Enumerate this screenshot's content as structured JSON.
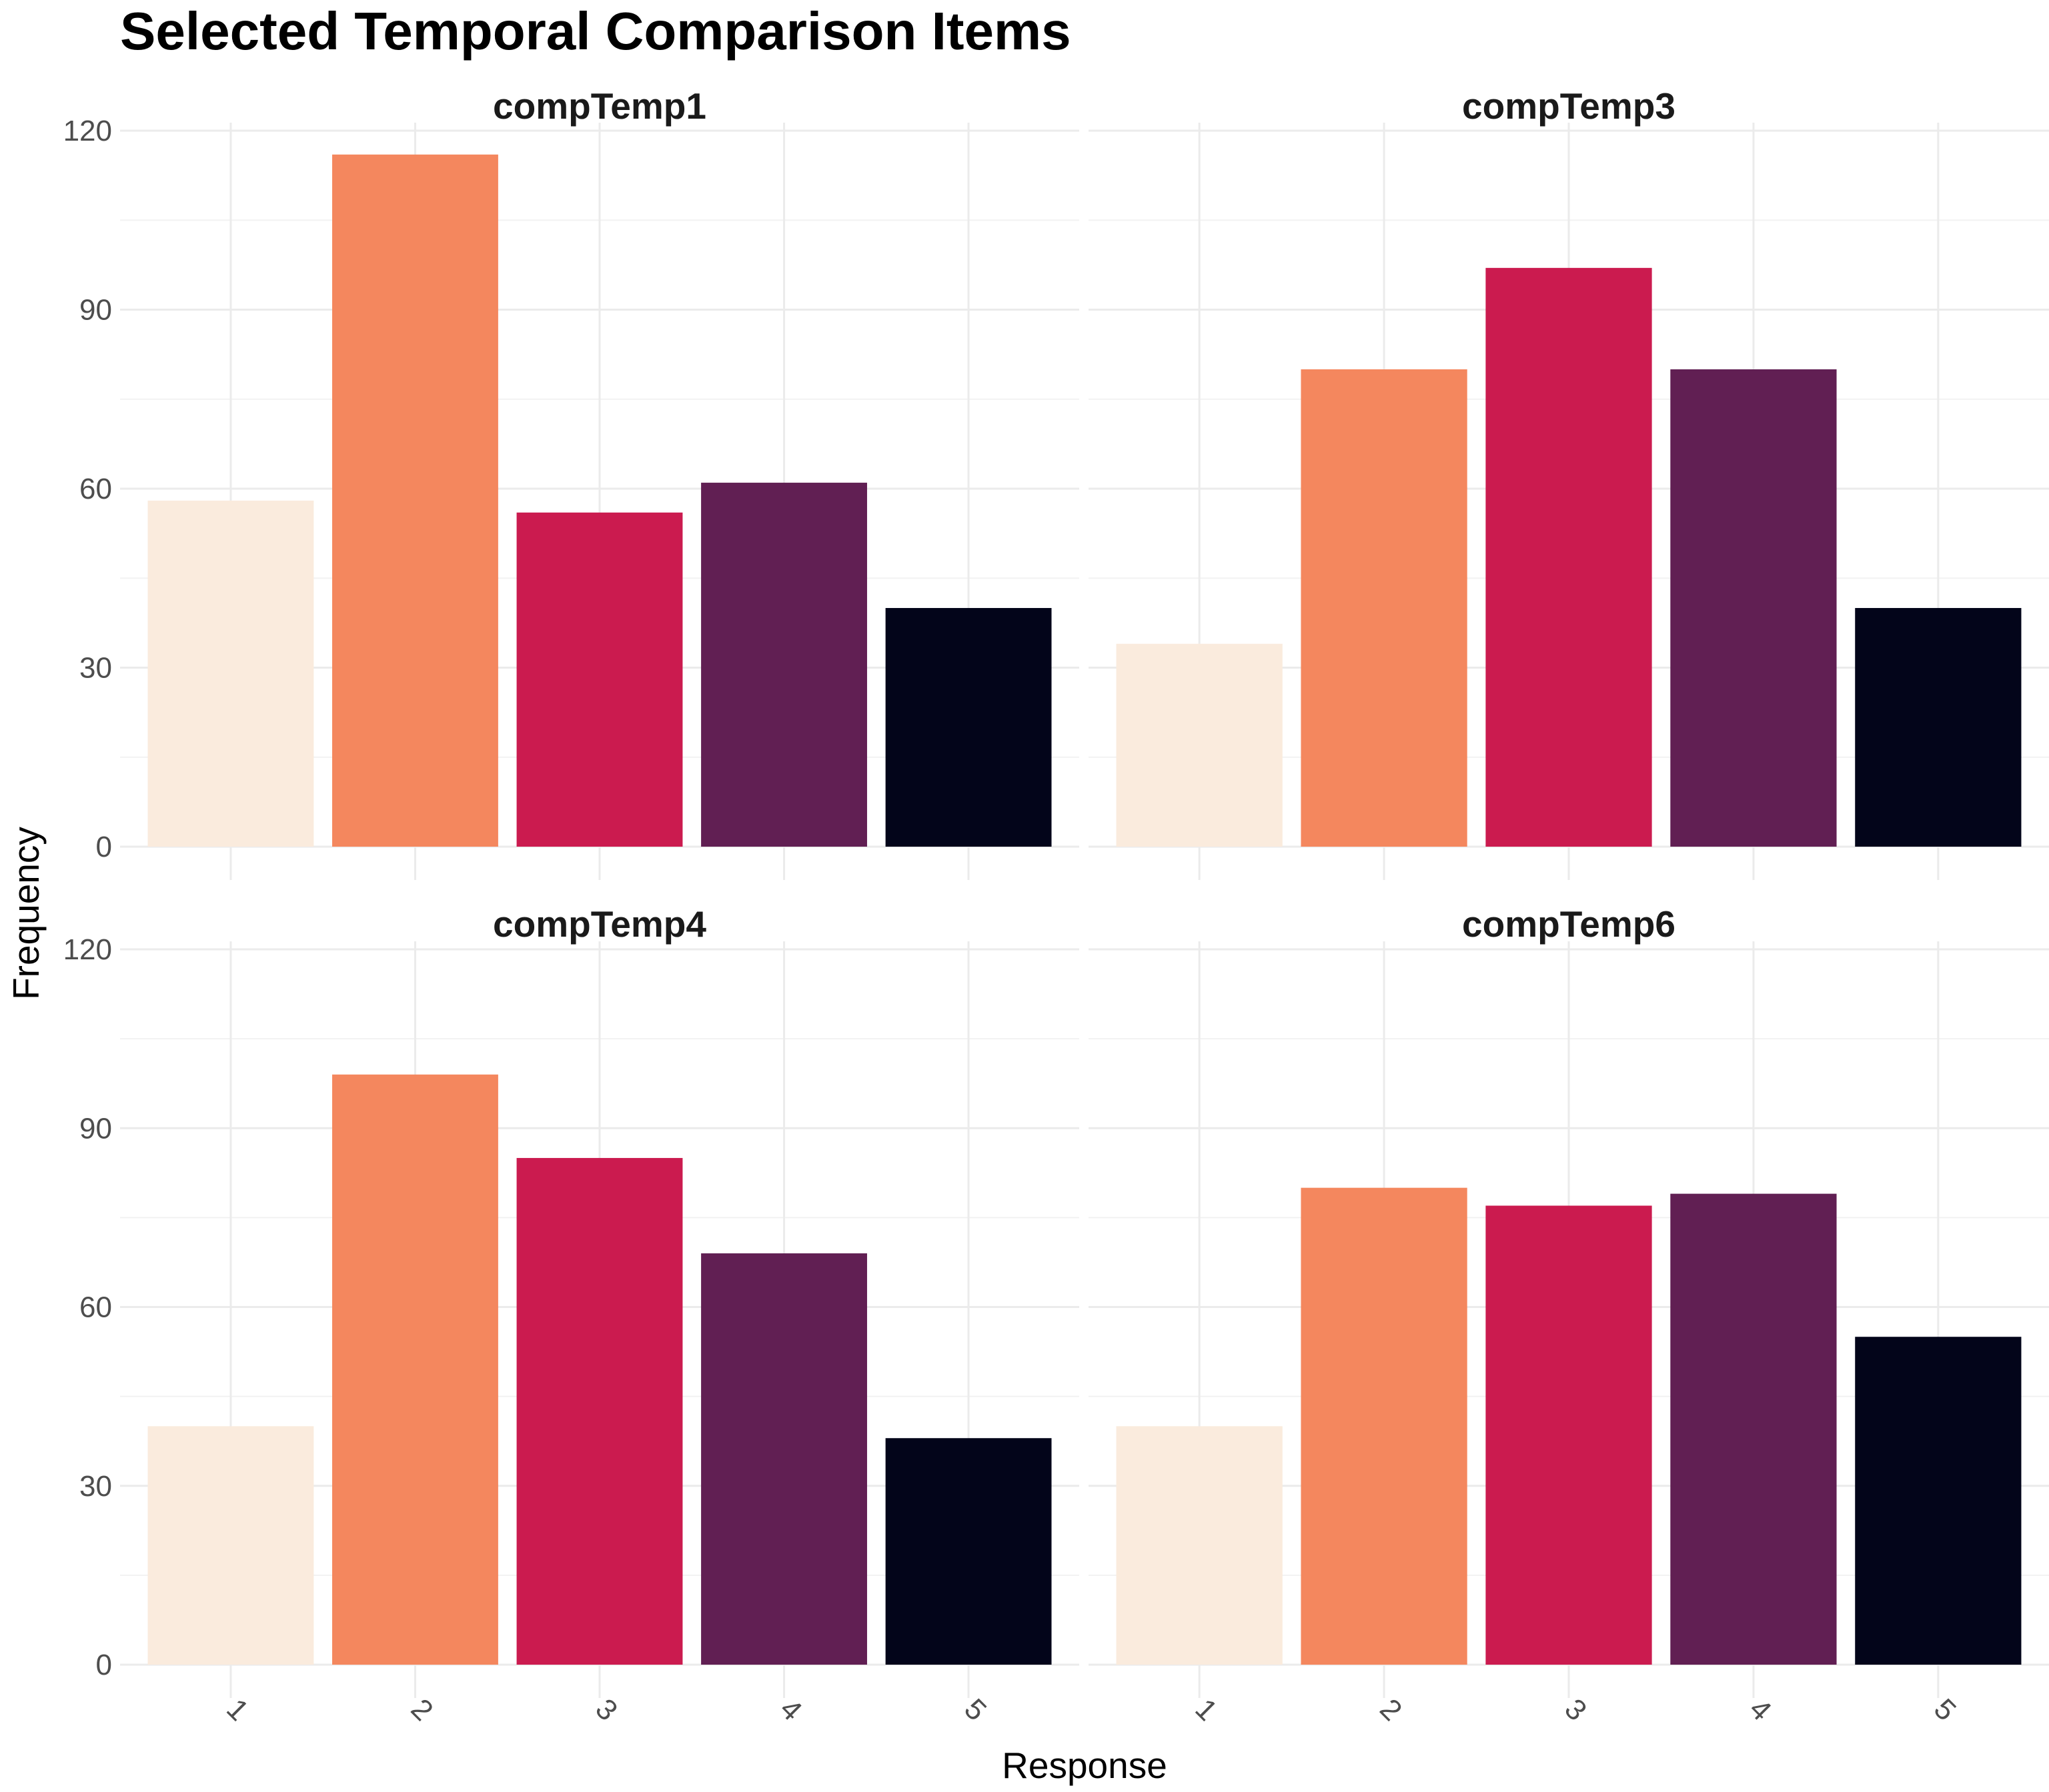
{
  "chart_data": {
    "type": "bar",
    "title": "Selected Temporal Comparison Items",
    "xlabel": "Response",
    "ylabel": "Frequency",
    "ylim": [
      0,
      120
    ],
    "yticks": [
      0,
      30,
      60,
      90,
      120
    ],
    "categories": [
      "1",
      "2",
      "3",
      "4",
      "5"
    ],
    "colors": [
      "#FAEBDD",
      "#F4875E",
      "#CB1B4F",
      "#611F53",
      "#03051A"
    ],
    "grid": true,
    "panels": [
      {
        "name": "compTemp1",
        "values": [
          58,
          116,
          56,
          61,
          40
        ]
      },
      {
        "name": "compTemp3",
        "values": [
          34,
          80,
          97,
          80,
          40
        ]
      },
      {
        "name": "compTemp4",
        "values": [
          40,
          99,
          85,
          69,
          38
        ]
      },
      {
        "name": "compTemp6",
        "values": [
          40,
          80,
          77,
          79,
          55
        ]
      }
    ]
  }
}
